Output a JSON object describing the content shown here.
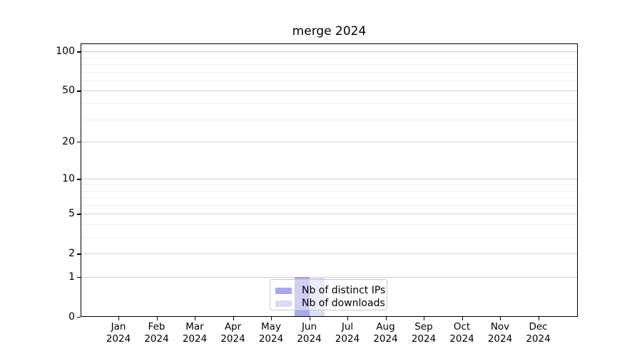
{
  "chart_data": {
    "type": "bar",
    "title": "merge 2024",
    "x_months": [
      "Jan",
      "Feb",
      "Mar",
      "Apr",
      "May",
      "Jun",
      "Jul",
      "Aug",
      "Sep",
      "Oct",
      "Nov",
      "Dec"
    ],
    "x_year": "2024",
    "series": [
      {
        "name": "Nb of distinct IPs",
        "color": "#a8a8ec",
        "values": [
          0,
          0,
          0,
          0,
          0,
          1,
          0,
          0,
          0,
          0,
          0,
          0
        ]
      },
      {
        "name": "Nb of downloads",
        "color": "#dcdcf4",
        "values": [
          0,
          0,
          0,
          0,
          0,
          1,
          0,
          0,
          0,
          0,
          0,
          0
        ]
      }
    ],
    "y_scale": "log1p",
    "ylim": [
      0,
      115
    ],
    "y_major_ticks": [
      100,
      50,
      20,
      10,
      5,
      2,
      1,
      0
    ],
    "y_minor_ticks": [
      3,
      4,
      6,
      7,
      8,
      9,
      30,
      40,
      60,
      70,
      80,
      90
    ],
    "grid": true,
    "legend_position": "lower center",
    "colors": {
      "grid_major": "#cfcfcf",
      "grid_minor": "#efefef",
      "axis": "#000000",
      "text": "#000000",
      "legend_border": "#c8c8c8"
    }
  }
}
